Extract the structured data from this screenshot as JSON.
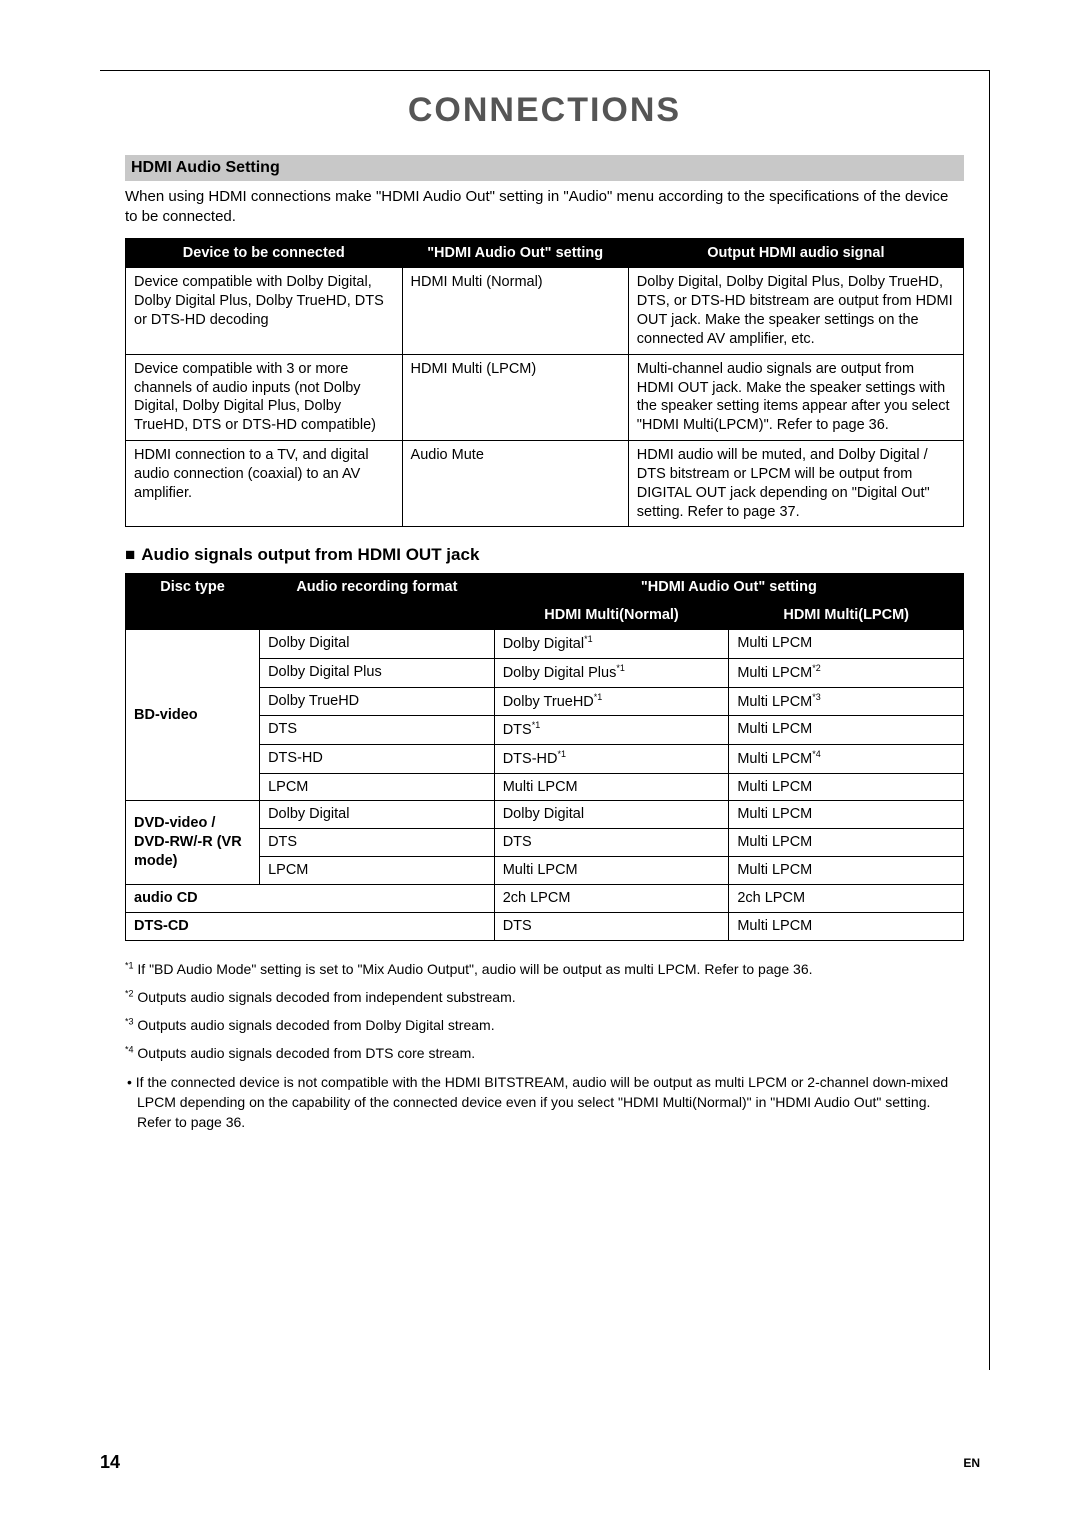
{
  "title": "CONNECTIONS",
  "section_bar": "HDMI Audio Setting",
  "intro": "When using HDMI connections make \"HDMI Audio Out\" setting in \"Audio\" menu according to the specifications of the device to be connected.",
  "table1": {
    "headers": [
      "Device to be connected",
      "\"HDMI Audio Out\" setting",
      "Output HDMI audio signal"
    ],
    "rows": [
      {
        "c1": "Device compatible with Dolby Digital, Dolby Digital Plus, Dolby TrueHD, DTS or DTS-HD decoding",
        "c2": "HDMI Multi (Normal)",
        "c3": "Dolby Digital, Dolby Digital Plus, Dolby TrueHD, DTS, or DTS-HD bitstream are output from HDMI OUT jack. Make the speaker settings on the connected AV amplifier, etc."
      },
      {
        "c1": "Device compatible with 3 or more channels of audio inputs (not Dolby Digital, Dolby Digital Plus, Dolby TrueHD, DTS or DTS-HD compatible)",
        "c2": "HDMI Multi (LPCM)",
        "c3": "Multi-channel audio signals are output from HDMI OUT jack. Make the speaker settings with the speaker setting items appear after you select \"HDMI Multi(LPCM)\".  Refer to page 36."
      },
      {
        "c1": "HDMI connection to a TV, and digital audio connection (coaxial) to an AV amplifier.",
        "c2": "Audio Mute",
        "c3": "HDMI audio will be muted, and Dolby Digital / DTS bitstream or LPCM will be output from DIGITAL OUT jack depending on \"Digital Out\" setting. Refer to page 37."
      }
    ]
  },
  "sub_heading": "Audio signals output from HDMI OUT jack",
  "table2": {
    "h_disc": "Disc type",
    "h_format": "Audio recording format",
    "h_setting": "\"HDMI Audio Out\" setting",
    "h_normal": "HDMI Multi(Normal)",
    "h_lpcm": "HDMI Multi(LPCM)",
    "groups": [
      {
        "label": "BD-video",
        "rows": [
          {
            "f": "Dolby Digital",
            "n": "Dolby Digital",
            "nsup": "*1",
            "l": "Multi LPCM"
          },
          {
            "f": "Dolby Digital Plus",
            "n": "Dolby Digital Plus",
            "nsup": "*1",
            "l": "Multi LPCM",
            "lsup": "*2"
          },
          {
            "f": "Dolby TrueHD",
            "n": "Dolby TrueHD",
            "nsup": "*1",
            "l": "Multi LPCM",
            "lsup": "*3"
          },
          {
            "f": "DTS",
            "n": "DTS",
            "nsup": "*1",
            "l": "Multi LPCM"
          },
          {
            "f": "DTS-HD",
            "n": "DTS-HD",
            "nsup": "*1",
            "l": "Multi LPCM",
            "lsup": "*4"
          },
          {
            "f": "LPCM",
            "n": "Multi LPCM",
            "l": "Multi LPCM"
          }
        ]
      },
      {
        "label": "DVD-video / DVD-RW/-R (VR mode)",
        "rows": [
          {
            "f": "Dolby Digital",
            "n": "Dolby Digital",
            "l": "Multi LPCM"
          },
          {
            "f": "DTS",
            "n": "DTS",
            "l": "Multi LPCM"
          },
          {
            "f": "LPCM",
            "n": "Multi LPCM",
            "l": "Multi LPCM"
          }
        ]
      },
      {
        "label": "audio CD",
        "span": true,
        "rows": [
          {
            "n": "2ch LPCM",
            "l": "2ch LPCM"
          }
        ]
      },
      {
        "label": "DTS-CD",
        "span": true,
        "rows": [
          {
            "n": "DTS",
            "l": "Multi LPCM"
          }
        ]
      }
    ]
  },
  "footnotes": [
    {
      "sup": "*1",
      "text": "If \"BD Audio Mode\" setting is set to \"Mix Audio Output\", audio will be output as multi LPCM. Refer to page 36."
    },
    {
      "sup": "*2",
      "text": "Outputs audio signals decoded from independent substream."
    },
    {
      "sup": "*3",
      "text": "Outputs audio signals decoded from Dolby Digital stream."
    },
    {
      "sup": "*4",
      "text": "Outputs audio signals decoded from DTS core stream."
    }
  ],
  "bullet": "If the connected device is not compatible with the HDMI BITSTREAM, audio will be output as multi LPCM or 2-channel down-mixed LPCM depending on the capability of the connected device even if you select \"HDMI Multi(Normal)\" in \"HDMI Audio Out\" setting. Refer to page 36.",
  "page_number": "14",
  "lang": "EN"
}
